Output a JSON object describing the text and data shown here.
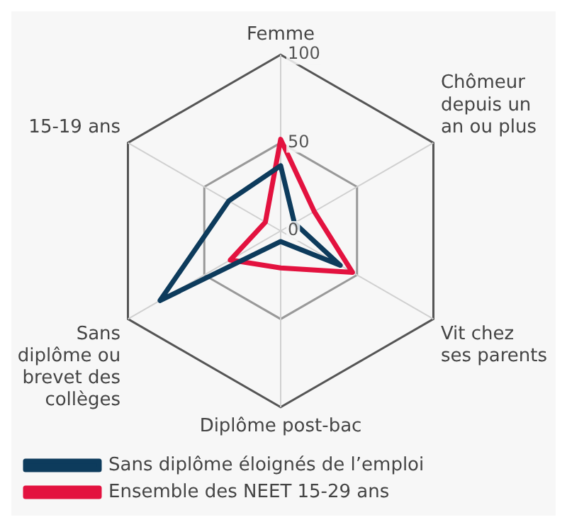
{
  "chart_data": {
    "type": "radar",
    "categories": [
      "Femme",
      "Chômeur depuis un an ou plus",
      "Vit chez ses parents",
      "Diplôme post-bac",
      "Sans diplôme ou brevet des collèges",
      "15-19 ans"
    ],
    "series": [
      {
        "name": "Sans diplôme éloignés de l’emploi",
        "color": "#0d3b5c",
        "values": [
          37,
          9,
          39,
          6,
          79,
          34
        ]
      },
      {
        "name": "Ensemble des NEET 15-29 ans",
        "color": "#e3123f",
        "values": [
          52,
          22,
          47,
          21,
          33,
          10
        ]
      }
    ],
    "ylim": [
      0,
      100
    ],
    "yticks": [
      0,
      50,
      100
    ],
    "grid": true,
    "legend": "bottom",
    "marker": "none"
  }
}
